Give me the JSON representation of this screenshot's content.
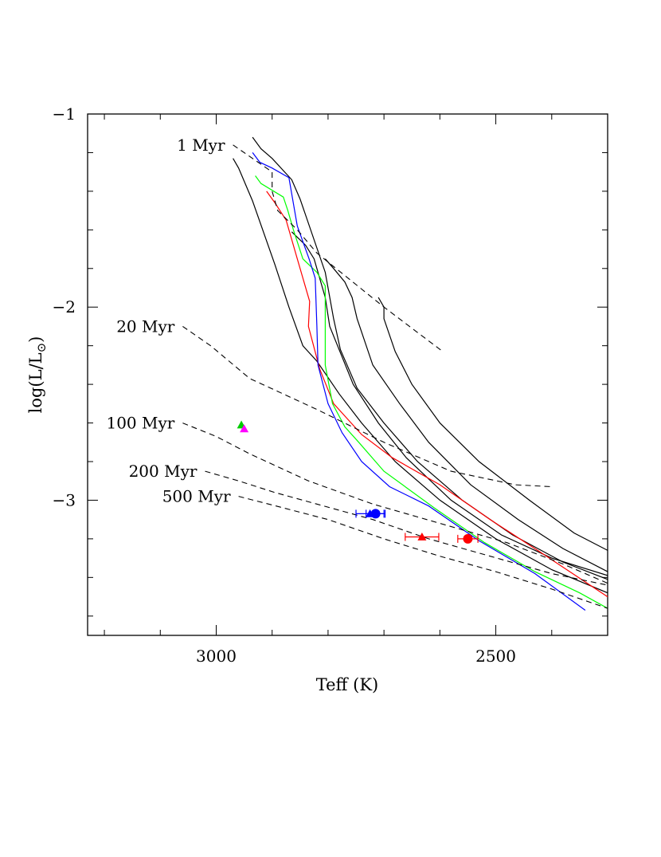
{
  "chart_data": {
    "type": "line",
    "title": "",
    "xlabel": "Teff (K)",
    "ylabel": "log(L/L⊙)",
    "xlim": [
      3230,
      2300
    ],
    "ylim": [
      -3.7,
      -1.0
    ],
    "x_reversed": true,
    "grid": false,
    "legend": "none",
    "x_ticks": [
      {
        "value": 3000,
        "label": "3000"
      },
      {
        "value": 2500,
        "label": "2500"
      }
    ],
    "y_ticks": [
      {
        "value": -1,
        "label": "−1"
      },
      {
        "value": -2,
        "label": "−2"
      },
      {
        "value": -3,
        "label": "−3"
      }
    ],
    "tracks": [
      {
        "color": "#000000",
        "points": [
          [
            2970,
            -1.23
          ],
          [
            2960,
            -1.28
          ],
          [
            2935,
            -1.45
          ],
          [
            2895,
            -1.78
          ],
          [
            2870,
            -2.0
          ],
          [
            2845,
            -2.2
          ],
          [
            2820,
            -2.28
          ],
          [
            2780,
            -2.45
          ],
          [
            2740,
            -2.6
          ],
          [
            2680,
            -2.8
          ],
          [
            2600,
            -3.0
          ],
          [
            2500,
            -3.2
          ],
          [
            2400,
            -3.36
          ],
          [
            2300,
            -3.48
          ]
        ]
      },
      {
        "color": "#000000",
        "points": [
          [
            2935,
            -1.12
          ],
          [
            2920,
            -1.18
          ],
          [
            2900,
            -1.23
          ],
          [
            2865,
            -1.34
          ],
          [
            2850,
            -1.44
          ],
          [
            2805,
            -1.82
          ],
          [
            2790,
            -2.06
          ],
          [
            2778,
            -2.22
          ],
          [
            2748,
            -2.42
          ],
          [
            2700,
            -2.6
          ],
          [
            2640,
            -2.8
          ],
          [
            2560,
            -3.0
          ],
          [
            2470,
            -3.18
          ],
          [
            2380,
            -3.32
          ],
          [
            2300,
            -3.41
          ]
        ]
      },
      {
        "color": "#000000",
        "points": [
          [
            2865,
            -1.61
          ],
          [
            2840,
            -1.68
          ],
          [
            2825,
            -1.75
          ],
          [
            2805,
            -1.95
          ],
          [
            2797,
            -2.1
          ],
          [
            2755,
            -2.4
          ],
          [
            2710,
            -2.6
          ],
          [
            2660,
            -2.78
          ],
          [
            2580,
            -3.0
          ],
          [
            2490,
            -3.18
          ],
          [
            2400,
            -3.3
          ],
          [
            2300,
            -3.39
          ]
        ]
      },
      {
        "color": "#000000",
        "points": [
          [
            2805,
            -1.75
          ],
          [
            2790,
            -1.8
          ],
          [
            2770,
            -1.87
          ],
          [
            2757,
            -1.95
          ],
          [
            2748,
            -2.06
          ],
          [
            2720,
            -2.3
          ],
          [
            2672,
            -2.5
          ],
          [
            2620,
            -2.7
          ],
          [
            2545,
            -2.92
          ],
          [
            2460,
            -3.1
          ],
          [
            2380,
            -3.25
          ],
          [
            2300,
            -3.37
          ]
        ]
      },
      {
        "color": "#000000",
        "points": [
          [
            2710,
            -1.95
          ],
          [
            2700,
            -2.0
          ],
          [
            2700,
            -2.06
          ],
          [
            2680,
            -2.23
          ],
          [
            2650,
            -2.4
          ],
          [
            2600,
            -2.6
          ],
          [
            2530,
            -2.8
          ],
          [
            2440,
            -3.0
          ],
          [
            2360,
            -3.17
          ],
          [
            2300,
            -3.26
          ]
        ]
      },
      {
        "color": "#ff0000",
        "points": [
          [
            2910,
            -1.4
          ],
          [
            2895,
            -1.46
          ],
          [
            2875,
            -1.55
          ],
          [
            2855,
            -1.75
          ],
          [
            2833,
            -1.97
          ],
          [
            2835,
            -2.1
          ],
          [
            2815,
            -2.32
          ],
          [
            2790,
            -2.5
          ],
          [
            2740,
            -2.66
          ],
          [
            2685,
            -2.78
          ],
          [
            2600,
            -2.92
          ],
          [
            2510,
            -3.1
          ],
          [
            2420,
            -3.27
          ],
          [
            2300,
            -3.5
          ]
        ]
      },
      {
        "color": "#00ff00",
        "points": [
          [
            2930,
            -1.32
          ],
          [
            2920,
            -1.36
          ],
          [
            2880,
            -1.43
          ],
          [
            2872,
            -1.5
          ],
          [
            2862,
            -1.6
          ],
          [
            2845,
            -1.75
          ],
          [
            2820,
            -1.82
          ],
          [
            2805,
            -1.89
          ],
          [
            2805,
            -2.3
          ],
          [
            2792,
            -2.5
          ],
          [
            2770,
            -2.62
          ],
          [
            2745,
            -2.7
          ],
          [
            2700,
            -2.85
          ],
          [
            2610,
            -3.04
          ],
          [
            2520,
            -3.22
          ],
          [
            2430,
            -3.37
          ],
          [
            2350,
            -3.48
          ],
          [
            2300,
            -3.56
          ]
        ]
      },
      {
        "color": "#0000ff",
        "points": [
          [
            2935,
            -1.2
          ],
          [
            2922,
            -1.25
          ],
          [
            2900,
            -1.28
          ],
          [
            2870,
            -1.33
          ],
          [
            2855,
            -1.58
          ],
          [
            2834,
            -1.75
          ],
          [
            2823,
            -1.85
          ],
          [
            2820,
            -2.1
          ],
          [
            2818,
            -2.3
          ],
          [
            2800,
            -2.5
          ],
          [
            2775,
            -2.65
          ],
          [
            2740,
            -2.8
          ],
          [
            2690,
            -2.93
          ],
          [
            2620,
            -3.03
          ],
          [
            2530,
            -3.21
          ],
          [
            2430,
            -3.38
          ],
          [
            2340,
            -3.57
          ]
        ]
      }
    ],
    "isochrones": [
      {
        "label": "1 Myr",
        "points": [
          [
            2970,
            -1.16
          ],
          [
            2935,
            -1.23
          ],
          [
            2900,
            -1.3
          ],
          [
            2900,
            -1.4
          ],
          [
            2890,
            -1.5
          ],
          [
            2855,
            -1.6
          ],
          [
            2820,
            -1.72
          ],
          [
            2700,
            -2.0
          ],
          [
            2595,
            -2.23
          ]
        ]
      },
      {
        "label": "20 Myr",
        "points": [
          [
            3060,
            -2.1
          ],
          [
            3010,
            -2.2
          ],
          [
            2940,
            -2.37
          ],
          [
            2820,
            -2.53
          ],
          [
            2700,
            -2.7
          ],
          [
            2580,
            -2.85
          ],
          [
            2465,
            -2.92
          ],
          [
            2400,
            -2.93
          ]
        ]
      },
      {
        "label": "100 Myr",
        "points": [
          [
            3060,
            -2.6
          ],
          [
            3000,
            -2.67
          ],
          [
            2940,
            -2.76
          ],
          [
            2835,
            -2.9
          ],
          [
            2720,
            -3.02
          ],
          [
            2600,
            -3.12
          ],
          [
            2480,
            -3.22
          ],
          [
            2380,
            -3.33
          ],
          [
            2300,
            -3.43
          ]
        ]
      },
      {
        "label": "200 Myr",
        "points": [
          [
            3020,
            -2.85
          ],
          [
            2960,
            -2.9
          ],
          [
            2895,
            -2.96
          ],
          [
            2820,
            -3.02
          ],
          [
            2720,
            -3.1
          ],
          [
            2620,
            -3.2
          ],
          [
            2510,
            -3.29
          ],
          [
            2400,
            -3.38
          ],
          [
            2300,
            -3.44
          ]
        ]
      },
      {
        "label": "500 Myr",
        "points": [
          [
            2960,
            -2.98
          ],
          [
            2880,
            -3.04
          ],
          [
            2800,
            -3.1
          ],
          [
            2700,
            -3.2
          ],
          [
            2600,
            -3.29
          ],
          [
            2500,
            -3.37
          ],
          [
            2400,
            -3.46
          ],
          [
            2300,
            -3.56
          ]
        ]
      }
    ],
    "data_points": [
      {
        "marker": "triangle",
        "color": "#00cc00",
        "x": 2955,
        "y": -2.61
      },
      {
        "marker": "triangle",
        "color": "#ff00ff",
        "x": 2950,
        "y": -2.63
      },
      {
        "marker": "circle",
        "color": "#0000ff",
        "x": 2715,
        "y": -3.07,
        "xerr": 17
      },
      {
        "marker": "triangle",
        "color": "#0000ff",
        "x": 2725,
        "y": -3.07,
        "xerr": 25
      },
      {
        "marker": "triangle",
        "color": "#ff0000",
        "x": 2632,
        "y": -3.19,
        "xerr": 30
      },
      {
        "marker": "circle",
        "color": "#ff0000",
        "x": 2550,
        "y": -3.2,
        "xerr": 18
      }
    ]
  }
}
